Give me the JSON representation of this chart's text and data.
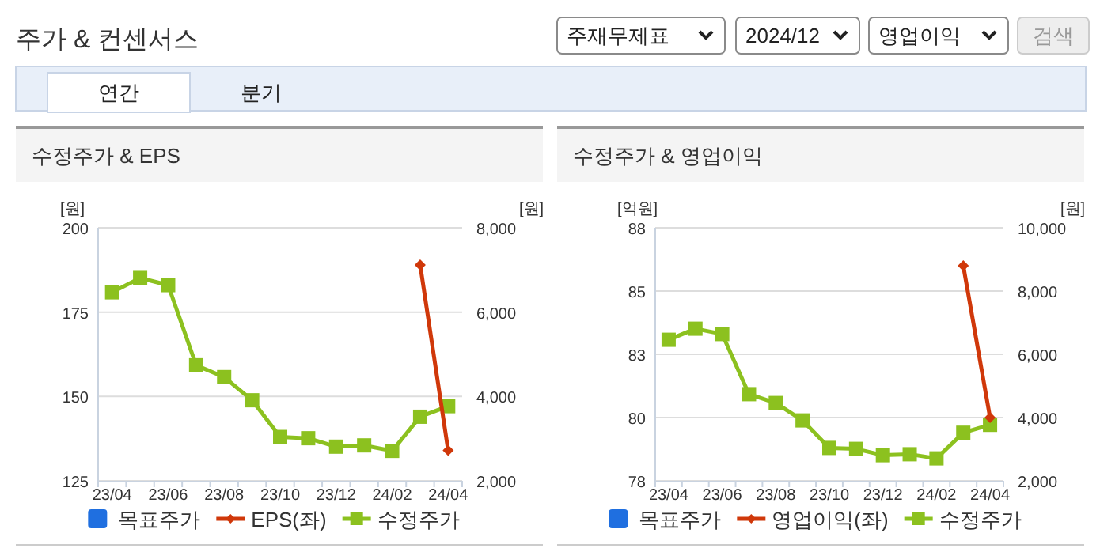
{
  "chart_data": [
    {
      "type": "other",
      "title": "주가 & 컨센서스",
      "annotations": [
        "주재무제표",
        "2024/12",
        "영업이익",
        "검색",
        "연간",
        "분기"
      ]
    },
    {
      "type": "line",
      "title": "수정주가 & EPS",
      "ylabel": "[원]",
      "y2label": "[원]",
      "categories": [
        "23/04",
        null,
        "23/06",
        null,
        "23/08",
        null,
        "23/10",
        null,
        "23/12",
        null,
        "24/02",
        null,
        "24/04"
      ],
      "ylim": [
        125,
        200
      ],
      "yticks": [
        125,
        150,
        175,
        200
      ],
      "y2lim": [
        2000,
        8000
      ],
      "y2ticks": [
        {
          "value": 2000,
          "label": "2,000"
        },
        {
          "value": 4000,
          "label": "4,000"
        },
        {
          "value": 6000,
          "label": "6,000"
        },
        {
          "value": 8000,
          "label": "8,000"
        }
      ],
      "grid": "y",
      "legend": "bottom",
      "series": [
        {
          "name": "목표주가",
          "type": "scatter",
          "marker": "square",
          "color": "#1f6fe0",
          "values": [
            null,
            null,
            null,
            null,
            null,
            null,
            null,
            null,
            null,
            null,
            null,
            null,
            null
          ]
        },
        {
          "name": "EPS(좌)",
          "type": "line",
          "marker": "diamond",
          "color": "#d0380a",
          "values": [
            null,
            null,
            null,
            null,
            null,
            null,
            null,
            null,
            null,
            null,
            null,
            189,
            134
          ]
        },
        {
          "name": "수정주가",
          "type": "line",
          "marker": "square",
          "axis": "y2",
          "color": "#8cc11f",
          "values": [
            6470,
            6810,
            6640,
            4740,
            4460,
            3910,
            3040,
            3010,
            2810,
            2840,
            2710,
            3520,
            3770
          ]
        }
      ]
    },
    {
      "type": "line",
      "title": "수정주가 & 영업이익",
      "ylabel": "[억원]",
      "y2label": "[원]",
      "categories": [
        "23/04",
        null,
        "23/06",
        null,
        "23/08",
        null,
        "23/10",
        null,
        "23/12",
        null,
        "24/02",
        null,
        "24/04"
      ],
      "ylim": [
        77.5,
        87.5
      ],
      "yticks": [
        {
          "value": 77.5,
          "label": "78"
        },
        80,
        {
          "value": 82.5,
          "label": "83"
        },
        85,
        {
          "value": 87.5,
          "label": "88"
        }
      ],
      "y2lim": [
        2000,
        10000
      ],
      "y2ticks": [
        {
          "value": 2000,
          "label": "2,000"
        },
        {
          "value": 4000,
          "label": "4,000"
        },
        {
          "value": 6000,
          "label": "6,000"
        },
        {
          "value": 8000,
          "label": "8,000"
        },
        {
          "value": 10000,
          "label": "10,000"
        }
      ],
      "grid": "y",
      "legend": "bottom",
      "series": [
        {
          "name": "목표주가",
          "type": "scatter",
          "marker": "square",
          "color": "#1f6fe0",
          "values": [
            null,
            null,
            null,
            null,
            null,
            null,
            null,
            null,
            null,
            null,
            null,
            null,
            null
          ]
        },
        {
          "name": "영업이익(좌)",
          "type": "line",
          "marker": "diamond",
          "color": "#d0380a",
          "values": [
            null,
            null,
            null,
            null,
            null,
            null,
            null,
            null,
            null,
            null,
            null,
            86,
            80
          ]
        },
        {
          "name": "수정주가",
          "type": "line",
          "marker": "square",
          "axis": "y2",
          "color": "#8cc11f",
          "values": [
            6460,
            6810,
            6640,
            4740,
            4460,
            3910,
            3040,
            3010,
            2810,
            2840,
            2710,
            3520,
            3770
          ]
        }
      ]
    }
  ]
}
